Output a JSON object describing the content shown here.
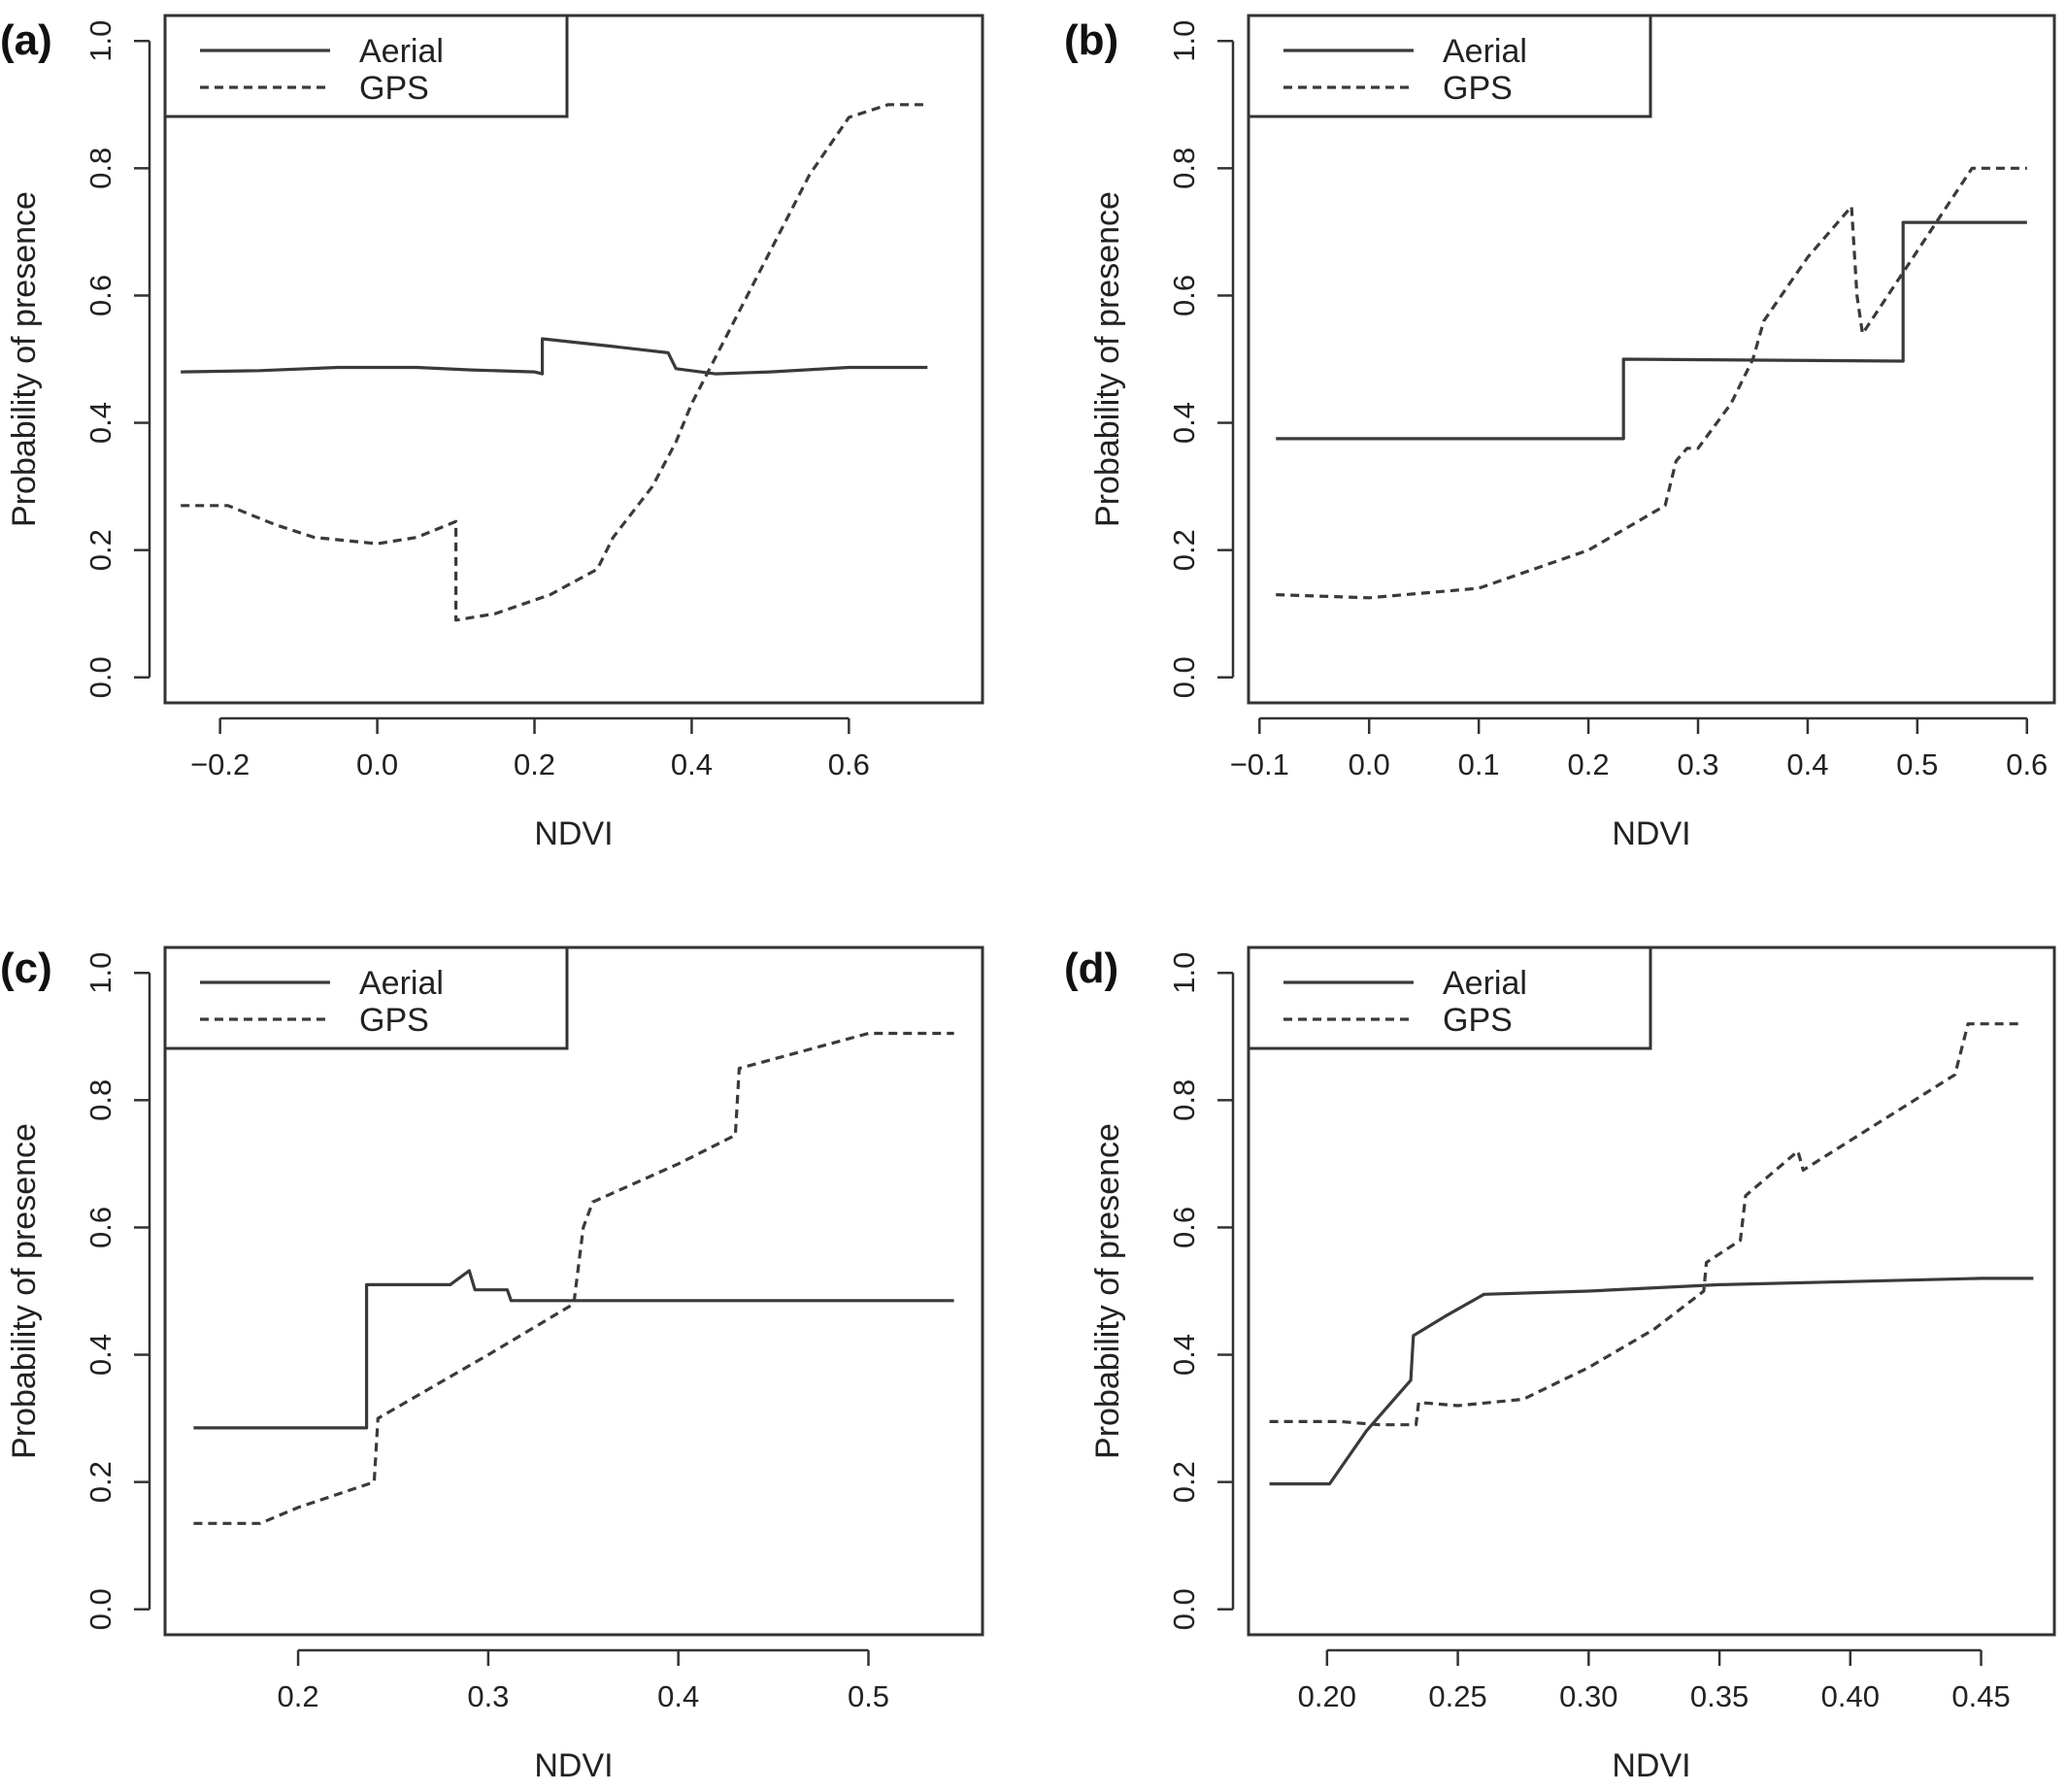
{
  "figure": {
    "colors": {
      "line": "#3a3a3a",
      "frame": "#333333",
      "text": "#222222"
    }
  },
  "chart_data": [
    {
      "type": "line",
      "panel_label": "(a)",
      "xlabel": "NDVI",
      "ylabel": "Probability of presence",
      "xlim": [
        -0.27,
        0.77
      ],
      "ylim": [
        -0.04,
        1.04
      ],
      "xticks": [
        -0.2,
        0.0,
        0.2,
        0.4,
        0.6
      ],
      "xtick_labels": [
        "−0.2",
        "0.0",
        "0.2",
        "0.4",
        "0.6"
      ],
      "yticks": [
        0.0,
        0.2,
        0.4,
        0.6,
        0.8,
        1.0
      ],
      "ytick_labels": [
        "0.0",
        "0.2",
        "0.4",
        "0.6",
        "0.8",
        "1.0"
      ],
      "legend": {
        "position": "top-left",
        "entries": [
          "Aerial",
          "GPS"
        ]
      },
      "series": [
        {
          "name": "Aerial",
          "style": "solid",
          "x": [
            -0.25,
            -0.15,
            -0.05,
            0.05,
            0.12,
            0.2,
            0.21,
            0.21,
            0.3,
            0.37,
            0.38,
            0.43,
            0.5,
            0.6,
            0.7
          ],
          "y": [
            0.48,
            0.482,
            0.487,
            0.487,
            0.483,
            0.48,
            0.477,
            0.532,
            0.52,
            0.51,
            0.485,
            0.477,
            0.48,
            0.487,
            0.487
          ]
        },
        {
          "name": "GPS",
          "style": "dashed",
          "x": [
            -0.25,
            -0.19,
            -0.13,
            -0.08,
            0.0,
            0.05,
            0.1,
            0.1,
            0.15,
            0.22,
            0.28,
            0.3,
            0.35,
            0.38,
            0.4,
            0.45,
            0.5,
            0.55,
            0.6,
            0.65,
            0.7
          ],
          "y": [
            0.27,
            0.27,
            0.24,
            0.22,
            0.21,
            0.22,
            0.245,
            0.09,
            0.1,
            0.13,
            0.17,
            0.22,
            0.3,
            0.37,
            0.43,
            0.55,
            0.67,
            0.79,
            0.88,
            0.9,
            0.9
          ]
        }
      ]
    },
    {
      "type": "line",
      "panel_label": "(b)",
      "xlabel": "NDVI",
      "ylabel": "Probability of presence",
      "xlim": [
        -0.11,
        0.625
      ],
      "ylim": [
        -0.04,
        1.04
      ],
      "xticks": [
        -0.1,
        0.0,
        0.1,
        0.2,
        0.3,
        0.4,
        0.5,
        0.6
      ],
      "xtick_labels": [
        "−0.1",
        "0.0",
        "0.1",
        "0.2",
        "0.3",
        "0.4",
        "0.5",
        "0.6"
      ],
      "yticks": [
        0.0,
        0.2,
        0.4,
        0.6,
        0.8,
        1.0
      ],
      "ytick_labels": [
        "0.0",
        "0.2",
        "0.4",
        "0.6",
        "0.8",
        "1.0"
      ],
      "legend": {
        "position": "top-left",
        "entries": [
          "Aerial",
          "GPS"
        ]
      },
      "series": [
        {
          "name": "Aerial",
          "style": "solid",
          "x": [
            -0.085,
            0.232,
            0.232,
            0.487,
            0.487,
            0.6
          ],
          "y": [
            0.375,
            0.375,
            0.5,
            0.497,
            0.715,
            0.715
          ]
        },
        {
          "name": "GPS",
          "style": "dashed",
          "x": [
            -0.085,
            0.0,
            0.1,
            0.2,
            0.27,
            0.28,
            0.29,
            0.3,
            0.33,
            0.35,
            0.36,
            0.4,
            0.44,
            0.445,
            0.45,
            0.5,
            0.55,
            0.6
          ],
          "y": [
            0.13,
            0.125,
            0.14,
            0.2,
            0.27,
            0.34,
            0.36,
            0.36,
            0.43,
            0.5,
            0.56,
            0.66,
            0.74,
            0.6,
            0.54,
            0.67,
            0.8,
            0.8
          ]
        }
      ]
    },
    {
      "type": "line",
      "panel_label": "(c)",
      "xlabel": "NDVI",
      "ylabel": "Probability of presence",
      "xlim": [
        0.13,
        0.56
      ],
      "ylim": [
        -0.04,
        1.04
      ],
      "xticks": [
        0.2,
        0.3,
        0.4,
        0.5
      ],
      "xtick_labels": [
        "0.2",
        "0.3",
        "0.4",
        "0.5"
      ],
      "yticks": [
        0.0,
        0.2,
        0.4,
        0.6,
        0.8,
        1.0
      ],
      "ytick_labels": [
        "0.0",
        "0.2",
        "0.4",
        "0.6",
        "0.8",
        "1.0"
      ],
      "legend": {
        "position": "top-left",
        "entries": [
          "Aerial",
          "GPS"
        ]
      },
      "series": [
        {
          "name": "Aerial",
          "style": "solid",
          "x": [
            0.145,
            0.236,
            0.236,
            0.28,
            0.29,
            0.293,
            0.31,
            0.312,
            0.545
          ],
          "y": [
            0.285,
            0.285,
            0.51,
            0.51,
            0.532,
            0.502,
            0.502,
            0.485,
            0.485
          ]
        },
        {
          "name": "GPS",
          "style": "dashed",
          "x": [
            0.145,
            0.18,
            0.2,
            0.24,
            0.242,
            0.3,
            0.345,
            0.35,
            0.355,
            0.4,
            0.43,
            0.432,
            0.5,
            0.545
          ],
          "y": [
            0.135,
            0.135,
            0.16,
            0.2,
            0.3,
            0.4,
            0.48,
            0.6,
            0.64,
            0.7,
            0.745,
            0.85,
            0.905,
            0.905
          ]
        }
      ]
    },
    {
      "type": "line",
      "panel_label": "(d)",
      "xlabel": "NDVI",
      "ylabel": "Probability of presence",
      "xlim": [
        0.17,
        0.478
      ],
      "ylim": [
        -0.04,
        1.04
      ],
      "xticks": [
        0.2,
        0.25,
        0.3,
        0.35,
        0.4,
        0.45
      ],
      "xtick_labels": [
        "0.20",
        "0.25",
        "0.30",
        "0.35",
        "0.40",
        "0.45"
      ],
      "yticks": [
        0.0,
        0.2,
        0.4,
        0.6,
        0.8,
        1.0
      ],
      "ytick_labels": [
        "0.0",
        "0.2",
        "0.4",
        "0.6",
        "0.8",
        "1.0"
      ],
      "legend": {
        "position": "top-left",
        "entries": [
          "Aerial",
          "GPS"
        ]
      },
      "series": [
        {
          "name": "Aerial",
          "style": "solid",
          "x": [
            0.178,
            0.201,
            0.215,
            0.232,
            0.233,
            0.245,
            0.26,
            0.3,
            0.35,
            0.4,
            0.45,
            0.47
          ],
          "y": [
            0.197,
            0.197,
            0.28,
            0.36,
            0.43,
            0.46,
            0.495,
            0.5,
            0.51,
            0.515,
            0.52,
            0.52
          ]
        },
        {
          "name": "GPS",
          "style": "dashed",
          "x": [
            0.178,
            0.205,
            0.22,
            0.234,
            0.235,
            0.25,
            0.275,
            0.3,
            0.325,
            0.344,
            0.345,
            0.358,
            0.36,
            0.38,
            0.382,
            0.44,
            0.445,
            0.465
          ],
          "y": [
            0.295,
            0.295,
            0.29,
            0.29,
            0.325,
            0.32,
            0.33,
            0.38,
            0.44,
            0.5,
            0.545,
            0.58,
            0.65,
            0.72,
            0.69,
            0.84,
            0.92,
            0.92
          ]
        }
      ]
    }
  ]
}
